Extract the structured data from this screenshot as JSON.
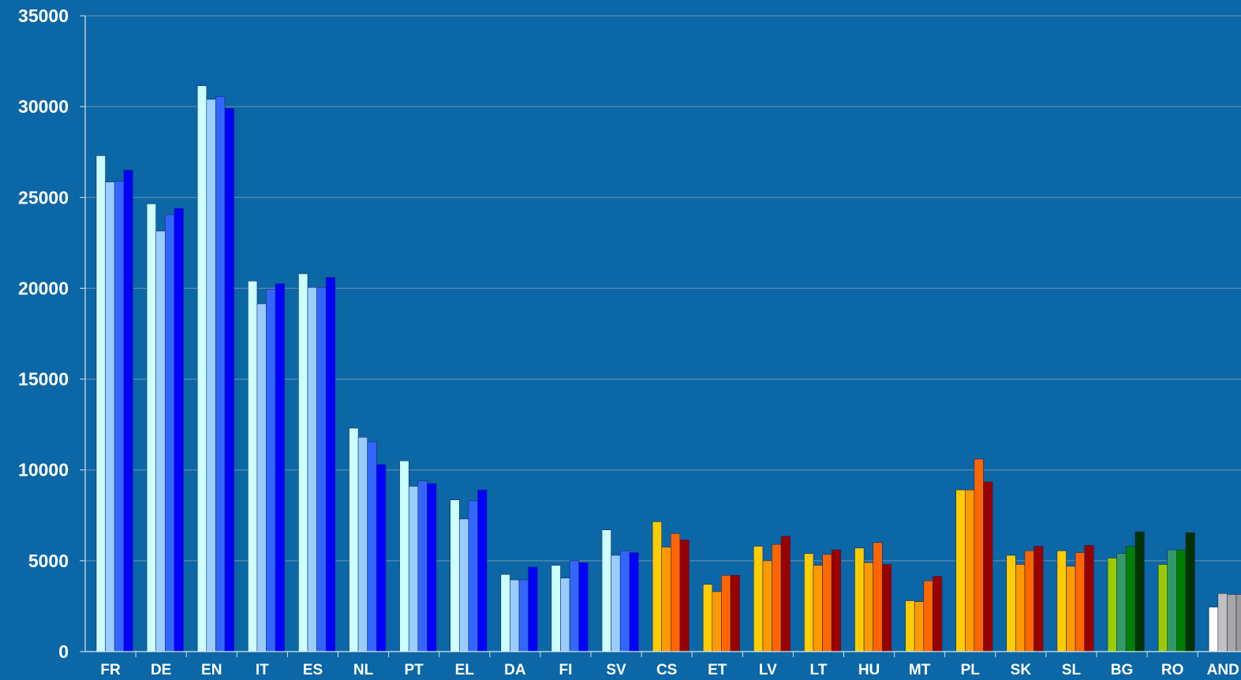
{
  "chart_data": {
    "type": "bar",
    "title": "",
    "xlabel": "",
    "ylabel": "",
    "ylim": [
      0,
      35000
    ],
    "yticks": [
      "0",
      "5000",
      "10000",
      "15000",
      "20000",
      "25000",
      "30000",
      "35000"
    ],
    "grid": true,
    "legend": "none",
    "categories": [
      "FR",
      "DE",
      "EN",
      "IT",
      "ES",
      "NL",
      "PT",
      "EL",
      "DA",
      "FI",
      "SV",
      "CS",
      "ET",
      "LV",
      "LT",
      "HU",
      "MT",
      "PL",
      "SK",
      "SL",
      "BG",
      "RO",
      "AND"
    ],
    "groups": [
      {
        "category": "FR",
        "values": [
          27300,
          25850,
          25900,
          26500
        ],
        "colors": [
          "#ccffff",
          "#99ccff",
          "#3366ff",
          "#0000ff"
        ]
      },
      {
        "category": "DE",
        "values": [
          24650,
          23150,
          24050,
          24400
        ],
        "colors": [
          "#ccffff",
          "#99ccff",
          "#3366ff",
          "#0000ff"
        ]
      },
      {
        "category": "EN",
        "values": [
          31150,
          30400,
          30550,
          29900
        ],
        "colors": [
          "#ccffff",
          "#99ccff",
          "#3366ff",
          "#0000ff"
        ]
      },
      {
        "category": "IT",
        "values": [
          20400,
          19150,
          19950,
          20250
        ],
        "colors": [
          "#ccffff",
          "#99ccff",
          "#3366ff",
          "#0000ff"
        ]
      },
      {
        "category": "ES",
        "values": [
          20800,
          20050,
          20050,
          20600
        ],
        "colors": [
          "#ccffff",
          "#99ccff",
          "#3366ff",
          "#0000ff"
        ]
      },
      {
        "category": "NL",
        "values": [
          12300,
          11800,
          11550,
          10300
        ],
        "colors": [
          "#ccffff",
          "#99ccff",
          "#3366ff",
          "#0000ff"
        ]
      },
      {
        "category": "PT",
        "values": [
          10500,
          9100,
          9400,
          9250
        ],
        "colors": [
          "#ccffff",
          "#99ccff",
          "#3366ff",
          "#0000ff"
        ]
      },
      {
        "category": "EL",
        "values": [
          8350,
          7300,
          8300,
          8900
        ],
        "colors": [
          "#ccffff",
          "#99ccff",
          "#3366ff",
          "#0000ff"
        ]
      },
      {
        "category": "DA",
        "values": [
          4250,
          3950,
          3950,
          4650
        ],
        "colors": [
          "#ccffff",
          "#99ccff",
          "#3366ff",
          "#0000ff"
        ]
      },
      {
        "category": "FI",
        "values": [
          4750,
          4050,
          5000,
          4900
        ],
        "colors": [
          "#ccffff",
          "#99ccff",
          "#3366ff",
          "#0000ff"
        ]
      },
      {
        "category": "SV",
        "values": [
          6700,
          5300,
          5550,
          5450
        ],
        "colors": [
          "#ccffff",
          "#99ccff",
          "#3366ff",
          "#0000ff"
        ]
      },
      {
        "category": "CS",
        "values": [
          7150,
          5750,
          6500,
          6150
        ],
        "colors": [
          "#ffcc00",
          "#ff9900",
          "#ff6600",
          "#990000"
        ]
      },
      {
        "category": "ET",
        "values": [
          3700,
          3300,
          4200,
          4200
        ],
        "colors": [
          "#ffcc00",
          "#ff9900",
          "#ff6600",
          "#990000"
        ]
      },
      {
        "category": "LV",
        "values": [
          5800,
          5000,
          5900,
          6350
        ],
        "colors": [
          "#ffcc00",
          "#ff9900",
          "#ff6600",
          "#990000"
        ]
      },
      {
        "category": "LT",
        "values": [
          5400,
          4750,
          5350,
          5600
        ],
        "colors": [
          "#ffcc00",
          "#ff9900",
          "#ff6600",
          "#990000"
        ]
      },
      {
        "category": "HU",
        "values": [
          5700,
          4900,
          6000,
          4800
        ],
        "colors": [
          "#ffcc00",
          "#ff9900",
          "#ff6600",
          "#990000"
        ]
      },
      {
        "category": "MT",
        "values": [
          2800,
          2750,
          3900,
          4150
        ],
        "colors": [
          "#ffcc00",
          "#ff9900",
          "#ff6600",
          "#990000"
        ]
      },
      {
        "category": "PL",
        "values": [
          8900,
          8900,
          10600,
          9350
        ],
        "colors": [
          "#ffcc00",
          "#ff9900",
          "#ff6600",
          "#990000"
        ]
      },
      {
        "category": "SK",
        "values": [
          5300,
          4800,
          5550,
          5800
        ],
        "colors": [
          "#ffcc00",
          "#ff9900",
          "#ff6600",
          "#990000"
        ]
      },
      {
        "category": "SL",
        "values": [
          5550,
          4700,
          5450,
          5850
        ],
        "colors": [
          "#ffcc00",
          "#ff9900",
          "#ff6600",
          "#990000"
        ]
      },
      {
        "category": "BG",
        "values": [
          5150,
          5400,
          5800,
          6600
        ],
        "colors": [
          "#99cc00",
          "#339966",
          "#008000",
          "#003300"
        ]
      },
      {
        "category": "RO",
        "values": [
          4800,
          5600,
          5600,
          6550
        ],
        "colors": [
          "#99cc00",
          "#339966",
          "#008000",
          "#003300"
        ]
      },
      {
        "category": "AND",
        "values": [
          2450,
          3200,
          3150,
          3150
        ],
        "colors": [
          "#ffffff",
          "#c0c0c0",
          "#a6a6a6",
          "#999999"
        ]
      }
    ]
  }
}
